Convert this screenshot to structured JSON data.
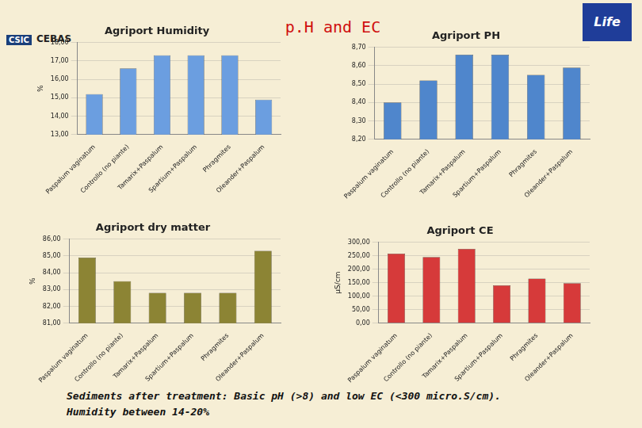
{
  "header": {
    "title": "p.H and EC"
  },
  "logos": [
    "CSIC",
    "CEBAS",
    "Life"
  ],
  "footer": [
    "Sediments after treatment: Basic pH (>8) and low EC (<300 micro.S/cm).",
    "Humidity between 14-20%"
  ],
  "chart_data": [
    {
      "type": "bar",
      "title": "Agriport Humidity",
      "y_label": "%",
      "categories": [
        "Paspalum vaginatum",
        "Controllo (no piante)",
        "Tamarix+Paspalum",
        "Spartium+Paspalum",
        "Phragmites",
        "Oleander+Paspalum"
      ],
      "values": [
        15.2,
        16.6,
        17.3,
        17.3,
        17.3,
        14.9
      ],
      "color": "#6b9ee0",
      "ylim": [
        13,
        18
      ],
      "yticks": [
        {
          "value": 13,
          "label": "13,00"
        },
        {
          "value": 14,
          "label": "14,00"
        },
        {
          "value": 15,
          "label": "15,00"
        },
        {
          "value": 16,
          "label": "16,00"
        },
        {
          "value": 17,
          "label": "17,00"
        },
        {
          "value": 18,
          "label": "18,00"
        }
      ],
      "grid": true
    },
    {
      "type": "bar",
      "title": "Agriport PH",
      "categories": [
        "Paspalum vaginatum",
        "Controllo (no piante)",
        "Tamarix+Paspalum",
        "Spartium+Paspalum",
        "Phragmites",
        "Oleander+Paspalum"
      ],
      "values": [
        8.4,
        8.52,
        8.66,
        8.66,
        8.55,
        8.59
      ],
      "color": "#4f86cc",
      "ylim": [
        8.2,
        8.7
      ],
      "yticks": [
        {
          "value": 8.2,
          "label": "8,20"
        },
        {
          "value": 8.3,
          "label": "8,30"
        },
        {
          "value": 8.4,
          "label": "8,40"
        },
        {
          "value": 8.5,
          "label": "8,50"
        },
        {
          "value": 8.6,
          "label": "8,60"
        },
        {
          "value": 8.7,
          "label": "8,70"
        }
      ],
      "grid": true
    },
    {
      "type": "bar",
      "title": "Agriport dry matter",
      "y_label": "%",
      "categories": [
        "Paspalum vaginatum",
        "Controllo (no piante)",
        "Tamarix+Paspalum",
        "Spartium+Paspalum",
        "Phragmites",
        "Oleander+Paspalum"
      ],
      "values": [
        84.9,
        83.5,
        82.8,
        82.8,
        82.8,
        85.3
      ],
      "color": "#8c8434",
      "ylim": [
        81,
        86
      ],
      "yticks": [
        {
          "value": 81,
          "label": "81,00"
        },
        {
          "value": 82,
          "label": "82,00"
        },
        {
          "value": 83,
          "label": "83,00"
        },
        {
          "value": 84,
          "label": "84,00"
        },
        {
          "value": 85,
          "label": "85,00"
        },
        {
          "value": 86,
          "label": "86,00"
        }
      ],
      "grid": true
    },
    {
      "type": "bar",
      "title": "Agriport CE",
      "y_label": "µS/cm",
      "categories": [
        "Paspalum vaginatum",
        "Controllo (no piante)",
        "Tamarix+Paspalum",
        "Spartium+Paspalum",
        "Phragmites",
        "Oleander+Paspalum"
      ],
      "values": [
        258,
        245,
        275,
        140,
        165,
        148
      ],
      "color": "#d63a3a",
      "ylim": [
        0,
        300
      ],
      "yticks": [
        {
          "value": 0,
          "label": "0,00"
        },
        {
          "value": 50,
          "label": "50,00"
        },
        {
          "value": 100,
          "label": "100,00"
        },
        {
          "value": 150,
          "label": "150,00"
        },
        {
          "value": 200,
          "label": "200,00"
        },
        {
          "value": 250,
          "label": "250,00"
        },
        {
          "value": 300,
          "label": "300,00"
        }
      ],
      "grid": true
    }
  ]
}
